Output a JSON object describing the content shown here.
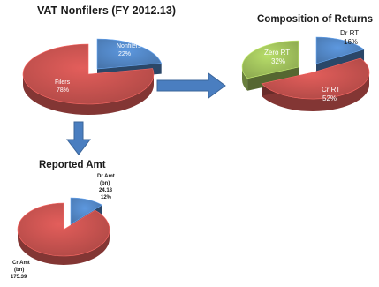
{
  "titles": {
    "main": "VAT Nonfilers (FY 2012.13)",
    "composition": "Composition of Returns",
    "reported": "Reported Amt"
  },
  "colors": {
    "blue": "#4f81bd",
    "red": "#c0504d",
    "green": "#9bbb59",
    "arrow": "#4a7ec0"
  },
  "chart_data": [
    {
      "type": "pie",
      "title": "VAT Nonfilers (FY 2012.13)",
      "slices": [
        {
          "label": "Nonfilers",
          "value": 22,
          "value_label": "22%",
          "color": "#4f81bd"
        },
        {
          "label": "Filers",
          "value": 78,
          "value_label": "78%",
          "color": "#c0504d"
        }
      ]
    },
    {
      "type": "pie",
      "title": "Composition of Returns",
      "slices": [
        {
          "label": "Dr RT",
          "value": 16,
          "value_label": "16%",
          "color": "#4f81bd"
        },
        {
          "label": "Cr RT",
          "value": 52,
          "value_label": "52%",
          "color": "#c0504d"
        },
        {
          "label": "Zero RT",
          "value": 32,
          "value_label": "32%",
          "color": "#9bbb59"
        }
      ]
    },
    {
      "type": "pie",
      "title": "Reported Amt",
      "slices": [
        {
          "label": "Dr Amt",
          "unit": "(bn)",
          "amount": "24.18",
          "value": 12,
          "value_label": "12%",
          "color": "#4f81bd"
        },
        {
          "label": "Cr Amt",
          "unit": "(bn)",
          "amount": "175.39",
          "value": 88,
          "color": "#c0504d"
        }
      ]
    }
  ]
}
